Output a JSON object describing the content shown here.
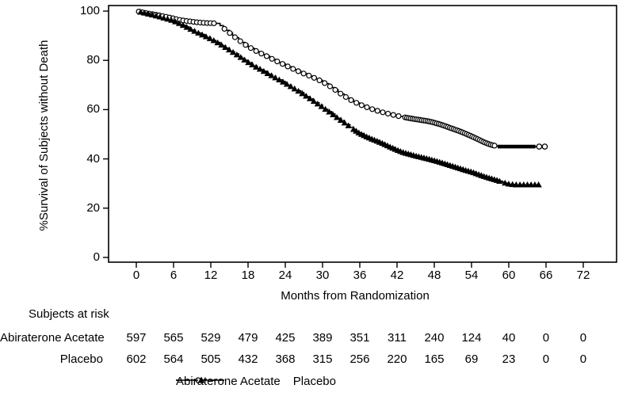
{
  "colors": {
    "ink": "#000000",
    "background": "#ffffff"
  },
  "chart_data": {
    "type": "line",
    "subtype": "kaplan-meier-step",
    "title": "",
    "xlabel": "Months from Randomization",
    "ylabel": "%Survival of Subjects without Death",
    "xlim": [
      0,
      72
    ],
    "ylim": [
      0,
      100
    ],
    "x_ticks": [
      0,
      6,
      12,
      18,
      24,
      30,
      36,
      42,
      48,
      54,
      60,
      66,
      72
    ],
    "y_ticks": [
      0,
      20,
      40,
      60,
      80,
      100
    ],
    "grid": false,
    "legend_position": "bottom",
    "series": [
      {
        "name": "Abiraterone Acetate",
        "line": "solid",
        "marker": "open-circle",
        "points": [
          [
            0,
            100
          ],
          [
            1,
            99.5
          ],
          [
            2,
            99
          ],
          [
            3,
            98.6
          ],
          [
            4,
            98.1
          ],
          [
            5,
            97.6
          ],
          [
            6,
            97
          ],
          [
            7,
            96.4
          ],
          [
            8,
            96
          ],
          [
            9,
            95.7
          ],
          [
            10,
            95.4
          ],
          [
            11,
            95.2
          ],
          [
            13,
            95
          ],
          [
            14,
            93.2
          ],
          [
            15,
            91.2
          ],
          [
            16,
            89.2
          ],
          [
            17,
            87.3
          ],
          [
            18,
            85.6
          ],
          [
            19,
            84.2
          ],
          [
            20,
            82.9
          ],
          [
            21,
            81.7
          ],
          [
            22,
            80.4
          ],
          [
            23,
            79.2
          ],
          [
            24,
            78
          ],
          [
            25,
            76.8
          ],
          [
            26,
            75.7
          ],
          [
            27,
            74.6
          ],
          [
            28,
            73.6
          ],
          [
            29,
            72.5
          ],
          [
            30,
            71.3
          ],
          [
            31,
            69.8
          ],
          [
            32,
            68.1
          ],
          [
            33,
            66.3
          ],
          [
            34,
            64.7
          ],
          [
            35,
            63.3
          ],
          [
            36,
            62.1
          ],
          [
            37,
            61.1
          ],
          [
            38,
            60.2
          ],
          [
            39,
            59.4
          ],
          [
            40,
            58.7
          ],
          [
            41,
            58.1
          ],
          [
            42,
            57.5
          ],
          [
            43,
            57
          ],
          [
            44,
            56.5
          ],
          [
            45,
            56.1
          ],
          [
            46,
            55.7
          ],
          [
            47,
            55.3
          ],
          [
            48,
            54.7
          ],
          [
            49,
            54
          ],
          [
            50,
            53.1
          ],
          [
            51,
            52.2
          ],
          [
            52,
            51.3
          ],
          [
            53,
            50.3
          ],
          [
            54,
            49.2
          ],
          [
            55,
            48
          ],
          [
            56,
            46.8
          ],
          [
            57,
            45.8
          ],
          [
            58,
            45.2
          ],
          [
            59,
            45
          ],
          [
            65.8,
            45
          ]
        ],
        "censor_marker_ranges": [
          {
            "from": 0.4,
            "to": 13,
            "step": 0.55
          },
          {
            "from": 14.2,
            "to": 43,
            "step": 0.85
          },
          {
            "from": 43.3,
            "to": 57.8,
            "step": 0.3
          }
        ],
        "thick_tail": {
          "from": 58.2,
          "to": 64.3,
          "value": 45
        },
        "end_marker_months": [
          64.9,
          65.8
        ]
      },
      {
        "name": "Placebo",
        "line": "dashed",
        "marker": "filled-triangle",
        "points": [
          [
            0,
            100
          ],
          [
            1,
            99.4
          ],
          [
            2,
            98.8
          ],
          [
            3,
            98.2
          ],
          [
            4,
            97.5
          ],
          [
            5,
            96.8
          ],
          [
            6,
            96
          ],
          [
            7,
            94.9
          ],
          [
            8,
            93.6
          ],
          [
            9,
            92.3
          ],
          [
            10,
            91.1
          ],
          [
            11,
            89.9
          ],
          [
            12,
            88.7
          ],
          [
            13,
            87.3
          ],
          [
            14,
            85.8
          ],
          [
            15,
            84.2
          ],
          [
            16,
            82.6
          ],
          [
            17,
            80.9
          ],
          [
            18,
            79.2
          ],
          [
            19,
            77.7
          ],
          [
            20,
            76.3
          ],
          [
            21,
            74.9
          ],
          [
            22,
            73.5
          ],
          [
            23,
            72.1
          ],
          [
            24,
            70.7
          ],
          [
            25,
            69.2
          ],
          [
            26,
            67.7
          ],
          [
            27,
            66.1
          ],
          [
            28,
            64.4
          ],
          [
            29,
            62.7
          ],
          [
            30,
            61
          ],
          [
            31,
            59.2
          ],
          [
            32,
            57.4
          ],
          [
            33,
            55.6
          ],
          [
            34,
            53.8
          ],
          [
            35,
            52
          ],
          [
            36,
            50.3
          ],
          [
            37,
            49.1
          ],
          [
            38,
            48
          ],
          [
            39,
            47
          ],
          [
            40,
            45.9
          ],
          [
            41,
            44.7
          ],
          [
            42,
            43.6
          ],
          [
            43,
            42.6
          ],
          [
            44,
            41.9
          ],
          [
            45,
            41.2
          ],
          [
            46,
            40.6
          ],
          [
            47,
            40
          ],
          [
            48,
            39.3
          ],
          [
            49,
            38.6
          ],
          [
            50,
            37.8
          ],
          [
            51,
            37
          ],
          [
            52,
            36.2
          ],
          [
            53,
            35.4
          ],
          [
            54,
            34.7
          ],
          [
            55,
            33.8
          ],
          [
            56,
            32.9
          ],
          [
            57,
            32.1
          ],
          [
            58,
            31.4
          ],
          [
            59,
            30.5
          ],
          [
            60,
            29.8
          ],
          [
            61,
            29.5
          ],
          [
            65.3,
            29.5
          ]
        ],
        "censor_marker_ranges": [
          {
            "from": 0.7,
            "to": 34.6,
            "step": 0.62
          },
          {
            "from": 35,
            "to": 58.8,
            "step": 0.42
          },
          {
            "from": 59.4,
            "to": 64.8,
            "step": 0.6
          }
        ]
      }
    ],
    "at_risk": {
      "heading": "Subjects at risk",
      "months": [
        0,
        6,
        12,
        18,
        24,
        30,
        36,
        42,
        48,
        54,
        60,
        66,
        72
      ],
      "rows": [
        {
          "label": "Abiraterone Acetate",
          "values": [
            597,
            565,
            529,
            479,
            425,
            389,
            351,
            311,
            240,
            124,
            40,
            0,
            0
          ]
        },
        {
          "label": "Placebo",
          "values": [
            602,
            564,
            505,
            432,
            368,
            315,
            256,
            220,
            165,
            69,
            23,
            0,
            0
          ]
        }
      ]
    },
    "legend": [
      {
        "label": "Abiraterone Acetate",
        "sample": "solid-line-open-circle"
      },
      {
        "label": "Placebo",
        "sample": "dashed-line-filled-triangle"
      }
    ]
  }
}
